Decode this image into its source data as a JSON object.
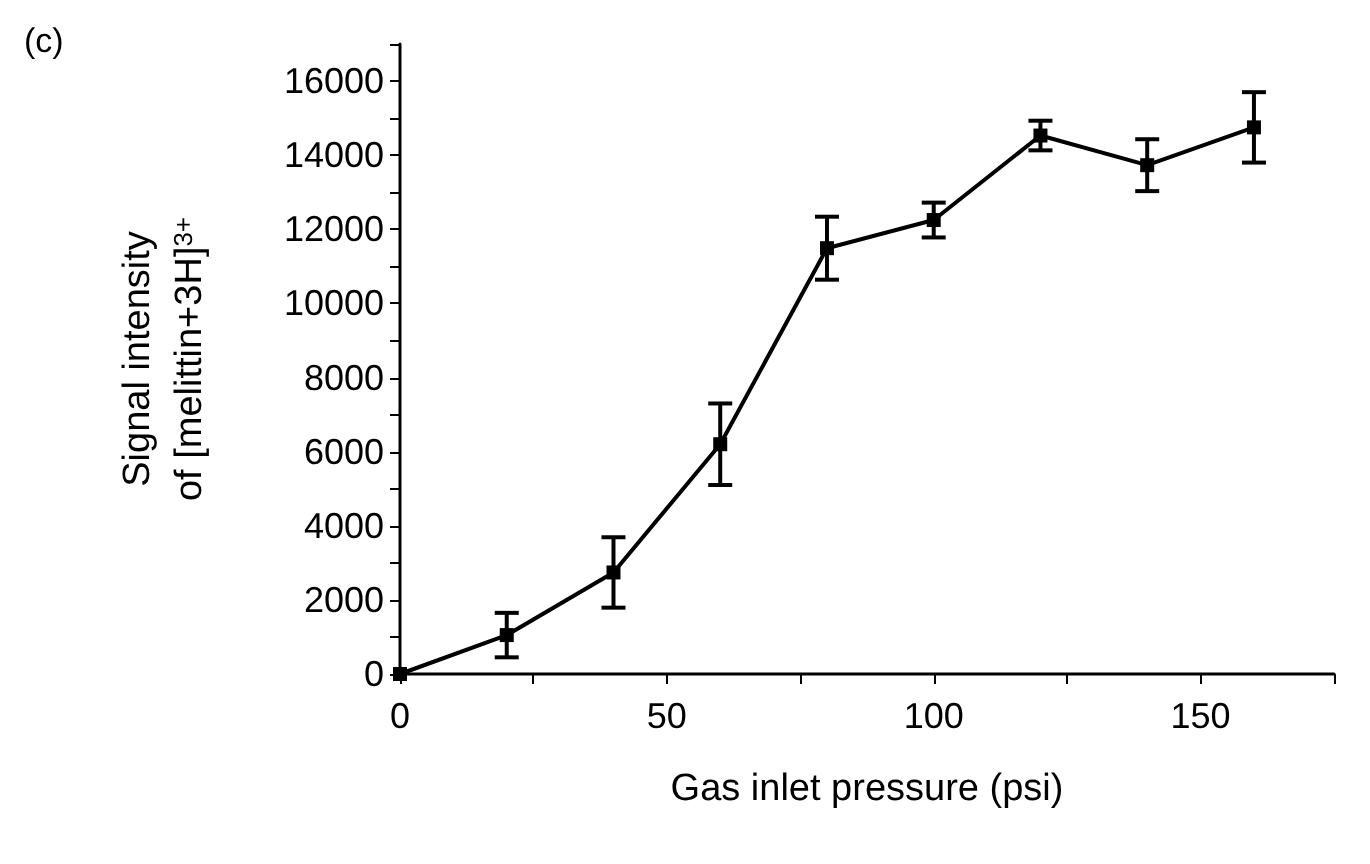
{
  "chart_data": {
    "type": "line",
    "xlabel": "Gas inlet pressure (psi)",
    "ylabel": "Signal intensity\nof [melittin+3H]$^{3+}$",
    "annotations": [
      "(c)"
    ],
    "x": [
      0,
      20,
      40,
      60,
      80,
      100,
      120,
      140,
      160
    ],
    "series": [
      {
        "color": "#000000",
        "values": [
          0,
          1050,
          2740,
          6200,
          11490,
          12250,
          14530,
          13730,
          14750
        ],
        "errors": [
          null,
          600,
          950,
          1100,
          850,
          470,
          400,
          700,
          950
        ]
      }
    ],
    "xlim": [
      0,
      175
    ],
    "xticks": [
      0,
      {
        "value": 25,
        "label": null
      },
      50,
      {
        "value": 75,
        "label": null
      },
      100,
      {
        "value": 125,
        "label": null
      },
      150,
      {
        "value": 175,
        "label": null
      }
    ],
    "ylim": [
      0,
      17000
    ],
    "yticks": [
      0,
      {
        "value": 1000,
        "label": null
      },
      2000,
      {
        "value": 3000,
        "label": null
      },
      4000,
      {
        "value": 5000,
        "label": null
      },
      6000,
      {
        "value": 7000,
        "label": null
      },
      8000,
      {
        "value": 9000,
        "label": null
      },
      10000,
      {
        "value": 11000,
        "label": null
      },
      12000,
      {
        "value": 13000,
        "label": null
      },
      14000,
      {
        "value": 15000,
        "label": null
      },
      16000,
      {
        "value": 17000,
        "label": null
      }
    ],
    "grid": false,
    "marker": "square",
    "line_style": "solid"
  }
}
